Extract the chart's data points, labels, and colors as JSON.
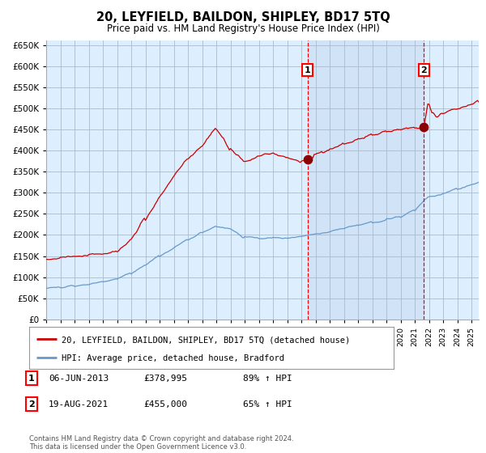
{
  "title": "20, LEYFIELD, BAILDON, SHIPLEY, BD17 5TQ",
  "subtitle": "Price paid vs. HM Land Registry's House Price Index (HPI)",
  "legend_line1": "20, LEYFIELD, BAILDON, SHIPLEY, BD17 5TQ (detached house)",
  "legend_line2": "HPI: Average price, detached house, Bradford",
  "sale1_date": "06-JUN-2013",
  "sale1_price": 378995,
  "sale1_label": "1",
  "sale1_pct": "89% ↑ HPI",
  "sale2_date": "19-AUG-2021",
  "sale2_price": 455000,
  "sale2_label": "2",
  "sale2_pct": "65% ↑ HPI",
  "footer": "Contains HM Land Registry data © Crown copyright and database right 2024.\nThis data is licensed under the Open Government Licence v3.0.",
  "red_line_color": "#cc0000",
  "blue_line_color": "#6699cc",
  "plot_bg_color": "#ddeeff",
  "fig_bg_color": "#ffffff",
  "grid_color": "#aabbcc",
  "sale1_x": 2013.43,
  "sale2_x": 2021.63,
  "ylim_min": 0,
  "ylim_max": 660000,
  "xlim_min": 1995.0,
  "xlim_max": 2025.5
}
